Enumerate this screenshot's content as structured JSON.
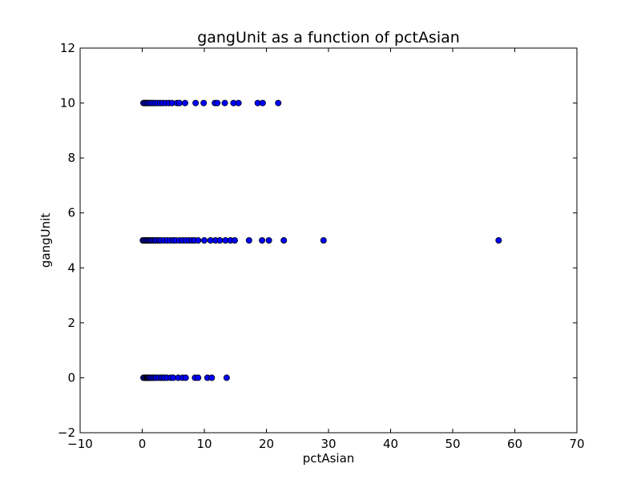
{
  "chart_data": {
    "type": "scatter",
    "title": "gangUnit as a function of pctAsian",
    "xlabel": "pctAsian",
    "ylabel": "gangUnit",
    "xlim": [
      -10,
      70
    ],
    "ylim": [
      -2,
      12
    ],
    "xticks": [
      -10,
      0,
      10,
      20,
      30,
      40,
      50,
      60,
      70
    ],
    "yticks": [
      -2,
      0,
      2,
      4,
      6,
      8,
      10,
      12
    ],
    "xtick_labels": [
      "−10",
      "0",
      "10",
      "20",
      "30",
      "40",
      "50",
      "60",
      "70"
    ],
    "ytick_labels": [
      "−2",
      "0",
      "2",
      "4",
      "6",
      "8",
      "10",
      "12"
    ],
    "grid": false,
    "legend": "none",
    "marker_color": "#0000ff",
    "marker_edge_color": "#000000",
    "series": [
      {
        "x": [
          0.2,
          0.4,
          0.5,
          0.7,
          0.8,
          0.9,
          1.0,
          1.1,
          1.3,
          1.5,
          1.7,
          2.0,
          2.2,
          2.6,
          3.0,
          3.3,
          3.6,
          4.0,
          4.6,
          5.0,
          5.8,
          6.5,
          7.0,
          8.5,
          9.0,
          10.5,
          11.2,
          13.6
        ],
        "y": [
          0,
          0,
          0,
          0,
          0,
          0,
          0,
          0,
          0,
          0,
          0,
          0,
          0,
          0,
          0,
          0,
          0,
          0,
          0,
          0,
          0,
          0,
          0,
          0,
          0,
          0,
          0,
          0
        ]
      },
      {
        "x": [
          0.1,
          0.3,
          0.5,
          0.6,
          0.8,
          1.0,
          1.2,
          1.4,
          1.6,
          1.9,
          2.1,
          2.4,
          2.8,
          3.0,
          3.5,
          4.0,
          4.5,
          5.0,
          5.4,
          6.0,
          6.5,
          7.0,
          7.5,
          8.0,
          8.4,
          9.0,
          10.0,
          11.0,
          11.8,
          12.5,
          13.4,
          14.2,
          14.9,
          17.2,
          19.3,
          20.4,
          22.8,
          29.2,
          57.4
        ],
        "y": [
          5,
          5,
          5,
          5,
          5,
          5,
          5,
          5,
          5,
          5,
          5,
          5,
          5,
          5,
          5,
          5,
          5,
          5,
          5,
          5,
          5,
          5,
          5,
          5,
          5,
          5,
          5,
          5,
          5,
          5,
          5,
          5,
          5,
          5,
          5,
          5,
          5,
          5,
          5
        ]
      },
      {
        "x": [
          0.2,
          0.4,
          0.6,
          0.8,
          1.0,
          1.2,
          1.5,
          1.8,
          2.1,
          2.5,
          2.9,
          3.3,
          3.8,
          4.3,
          4.8,
          5.6,
          6.0,
          6.9,
          8.6,
          9.9,
          11.7,
          12.1,
          13.3,
          14.7,
          15.5,
          18.6,
          19.4,
          21.9
        ],
        "y": [
          10,
          10,
          10,
          10,
          10,
          10,
          10,
          10,
          10,
          10,
          10,
          10,
          10,
          10,
          10,
          10,
          10,
          10,
          10,
          10,
          10,
          10,
          10,
          10,
          10,
          10,
          10,
          10
        ]
      }
    ]
  }
}
